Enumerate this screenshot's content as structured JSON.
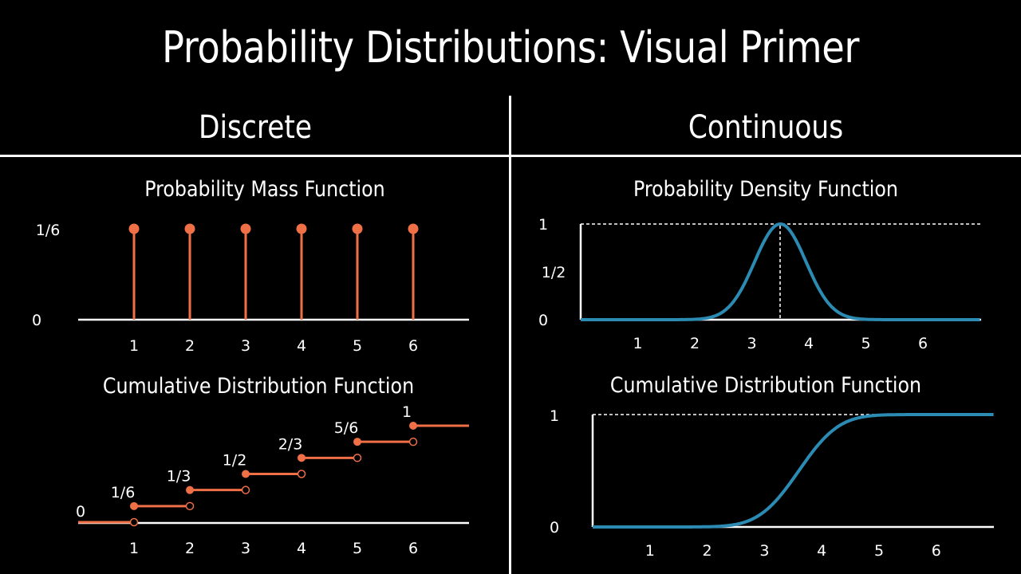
{
  "title": "Probability Distributions: Visual Primer",
  "columns": {
    "left": "Discrete",
    "right": "Continuous"
  },
  "colors": {
    "discrete": "#ef6f47",
    "continuous": "#2b8bb3",
    "axis": "#ffffff",
    "background": "#000000"
  },
  "chart_data": [
    {
      "type": "scatter",
      "title": "Probability Mass Function",
      "x": [
        1,
        2,
        3,
        4,
        5,
        6
      ],
      "y": [
        "1/6",
        "1/6",
        "1/6",
        "1/6",
        "1/6",
        "1/6"
      ],
      "x_ticks": [
        "1",
        "2",
        "3",
        "4",
        "5",
        "6"
      ],
      "y_ticks": [
        "0",
        "1/6"
      ]
    },
    {
      "type": "line",
      "title": "Cumulative Distribution Function",
      "steps": [
        {
          "from": 0,
          "to": 1,
          "value": 0,
          "label": "0"
        },
        {
          "from": 1,
          "to": 2,
          "value": 0.1667,
          "label": "1/6"
        },
        {
          "from": 2,
          "to": 3,
          "value": 0.3333,
          "label": "1/3"
        },
        {
          "from": 3,
          "to": 4,
          "value": 0.5,
          "label": "1/2"
        },
        {
          "from": 4,
          "to": 5,
          "value": 0.6667,
          "label": "2/3"
        },
        {
          "from": 5,
          "to": 6,
          "value": 0.8333,
          "label": "5/6"
        },
        {
          "from": 6,
          "to": 7,
          "value": 1,
          "label": "1"
        }
      ],
      "x_ticks": [
        "1",
        "2",
        "3",
        "4",
        "5",
        "6"
      ]
    },
    {
      "type": "line",
      "title": "Probability Density Function",
      "distribution": "normal",
      "peak_x": 3.5,
      "peak_y": 1,
      "xlim": [
        0,
        7
      ],
      "y_ticks": [
        "0",
        "1/2",
        "1"
      ],
      "x_ticks": [
        "1",
        "2",
        "3",
        "4",
        "5",
        "6"
      ]
    },
    {
      "type": "line",
      "title": "Cumulative Distribution Function",
      "distribution": "normal",
      "xlim": [
        0,
        7
      ],
      "ylim": [
        0,
        1
      ],
      "y_ticks": [
        "0",
        "1"
      ],
      "x_ticks": [
        "1",
        "2",
        "3",
        "4",
        "5",
        "6"
      ]
    }
  ]
}
